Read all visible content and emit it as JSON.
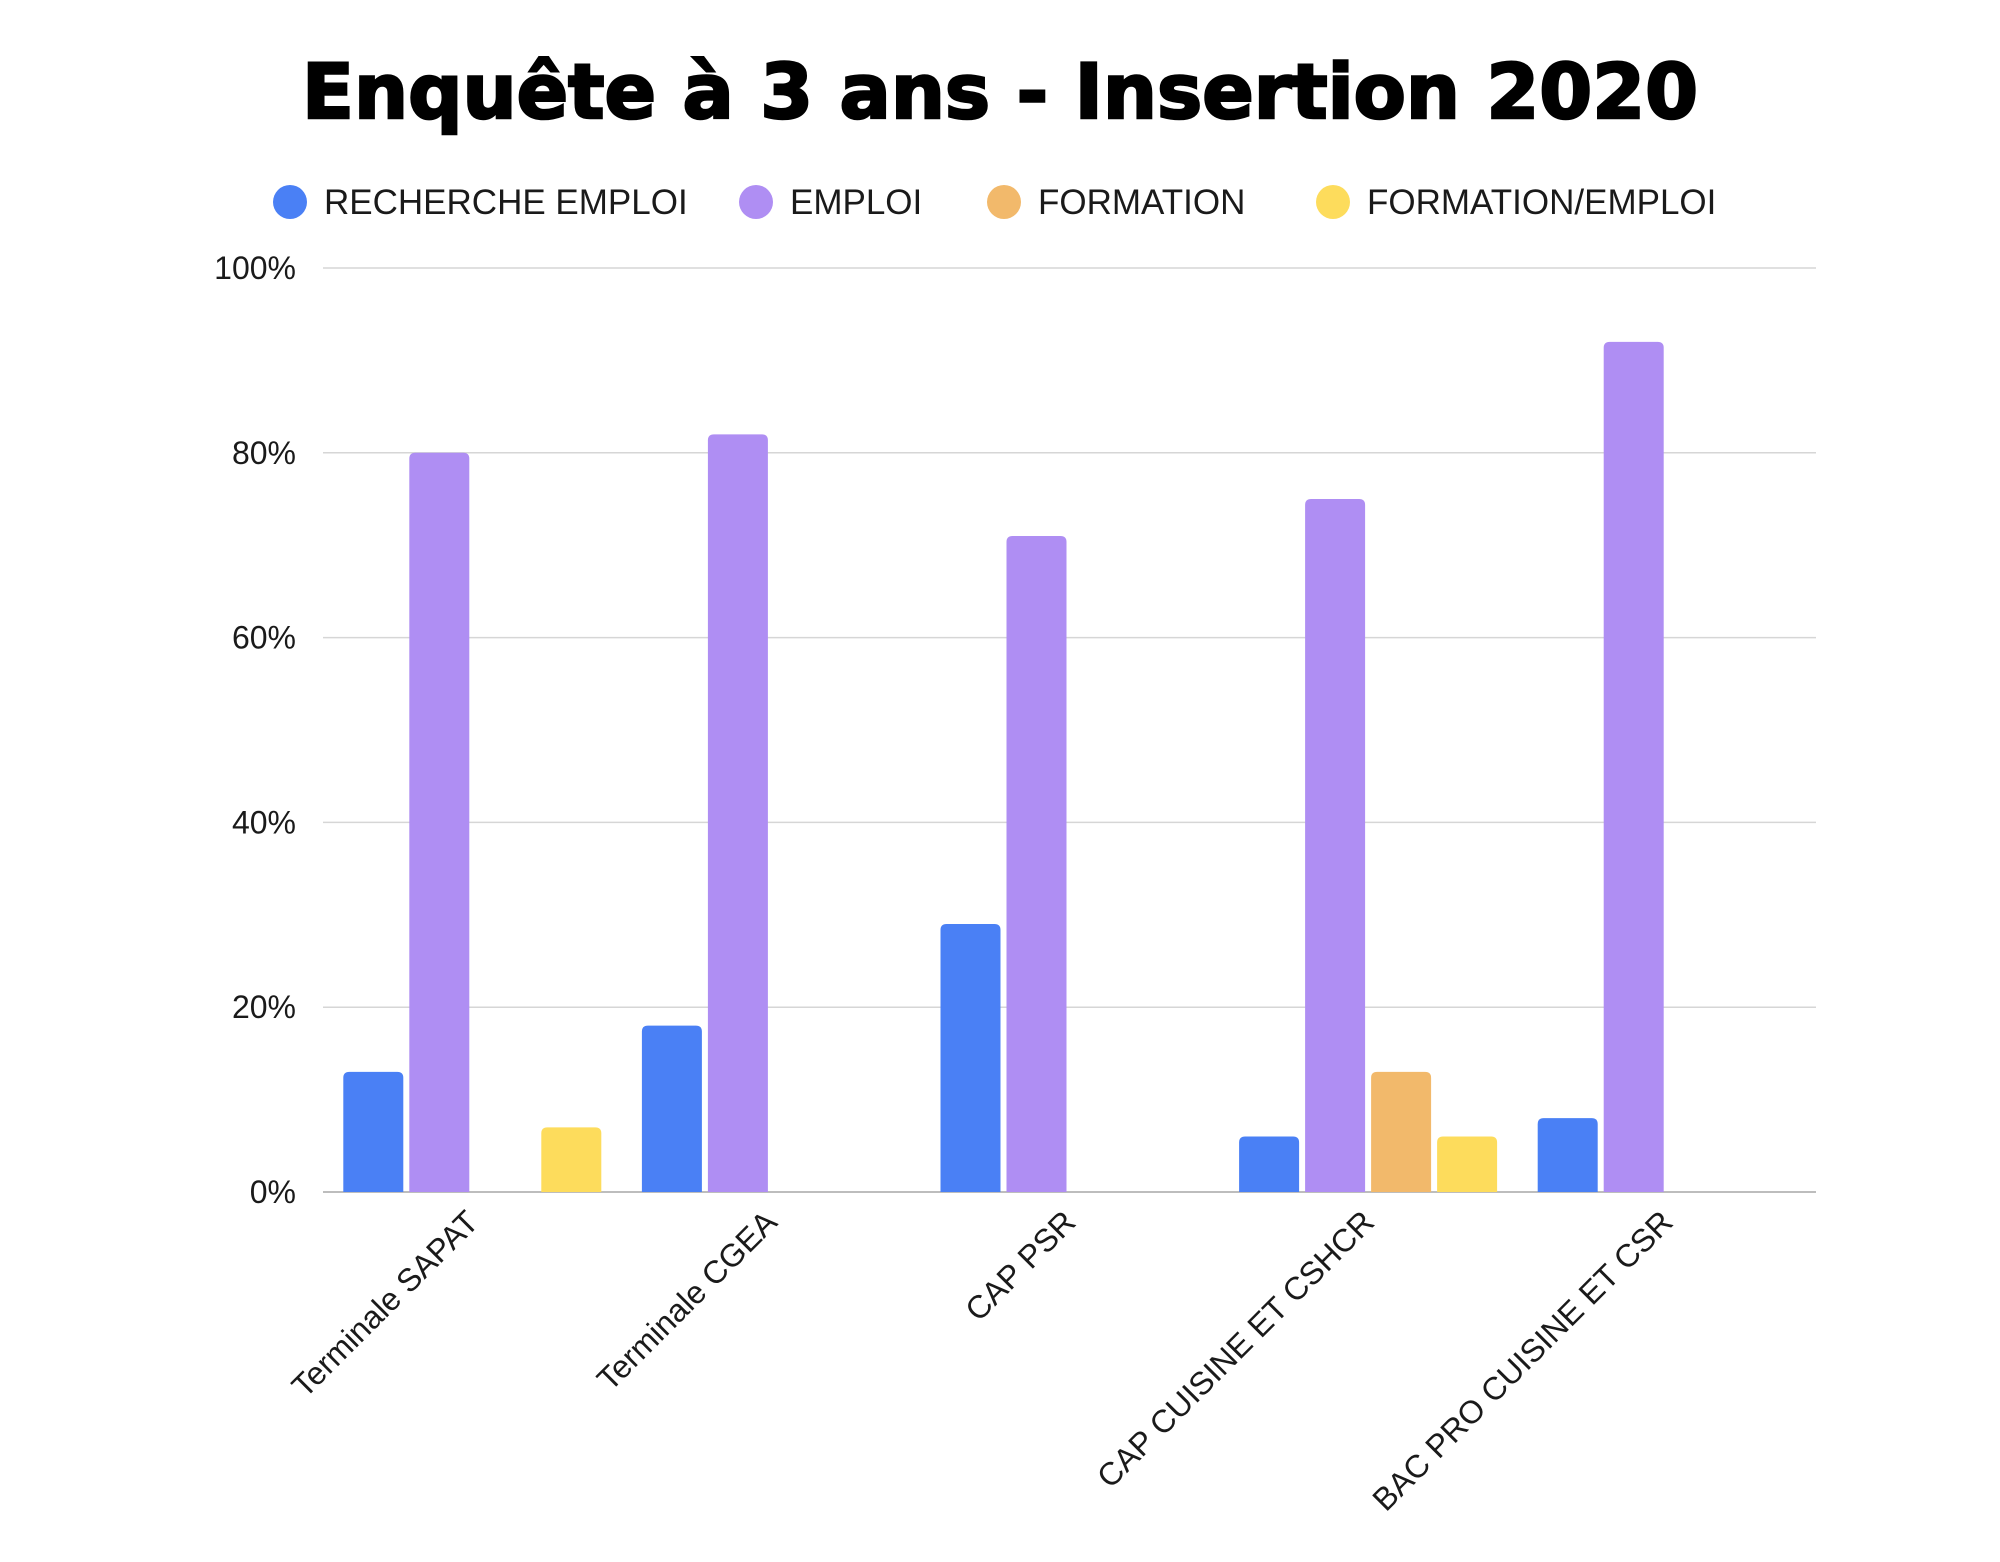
{
  "chart_data": {
    "type": "bar",
    "title": "Enquête à 3 ans - Insertion 2020",
    "xlabel": "",
    "ylabel": "",
    "ylim": [
      0,
      100
    ],
    "yticks": [
      "0%",
      "20%",
      "40%",
      "60%",
      "80%",
      "100%"
    ],
    "ytick_values": [
      0,
      20,
      40,
      60,
      80,
      100
    ],
    "grid": true,
    "legend_position": "top",
    "categories": [
      "Terminale SAPAT",
      "Terminale CGEA",
      "CAP PSR",
      "CAP CUISINE ET CSHCR",
      "BAC PRO CUISINE ET CSR"
    ],
    "series": [
      {
        "name": "RECHERCHE EMPLOI",
        "color": "#4a80f5",
        "values": [
          13,
          18,
          29,
          6,
          8
        ]
      },
      {
        "name": "EMPLOI",
        "color": "#af8ef3",
        "values": [
          80,
          82,
          71,
          75,
          92
        ]
      },
      {
        "name": "FORMATION",
        "color": "#f2b96b",
        "values": [
          0,
          0,
          0,
          13,
          0
        ]
      },
      {
        "name": "FORMATION/EMPLOI",
        "color": "#fddc5c",
        "values": [
          7,
          0,
          0,
          6,
          0
        ]
      }
    ]
  }
}
